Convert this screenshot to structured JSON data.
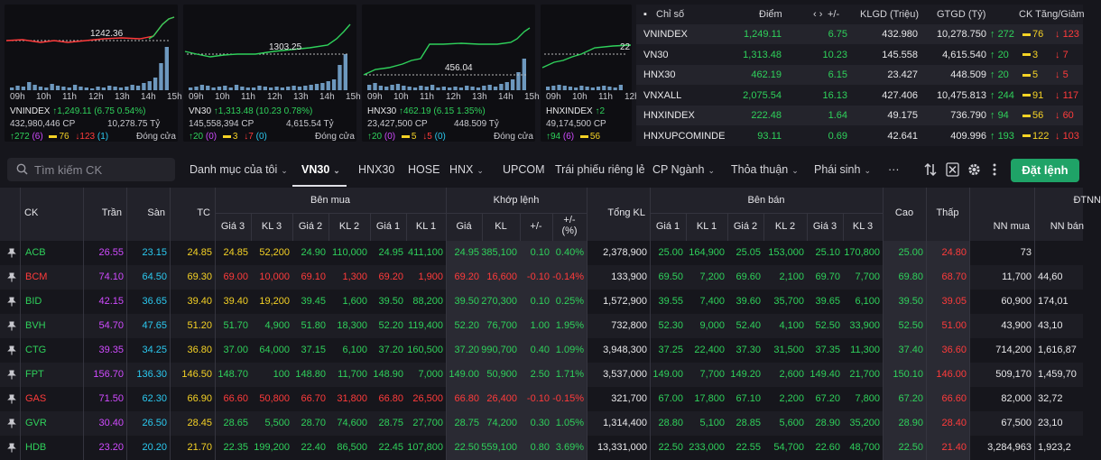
{
  "colors": {
    "up": "#2fd15b",
    "down": "#ff3b3b",
    "ref": "#f5d225",
    "floor": "#2bc9f0",
    "ceil": "#d04bff",
    "accent": "#1fa367"
  },
  "cards": [
    {
      "ref_label": "1242.36",
      "times": [
        "09h",
        "10h",
        "11h",
        "12h",
        "13h",
        "14h",
        "15h"
      ],
      "name": "VNINDEX",
      "arrow": "↑",
      "value": "1,249.11 (6.75 0.54%)",
      "volume": "432,980,446 CP",
      "turnover": "10,278.75 Tỷ",
      "up": "272",
      "up_ceil": "(6)",
      "ref": "76",
      "down": "123",
      "down_floor": "(1)",
      "status": "Đóng cửa"
    },
    {
      "ref_label": "1303.25",
      "times": [
        "09h",
        "10h",
        "11h",
        "12h",
        "13h",
        "14h",
        "15h"
      ],
      "name": "VN30",
      "arrow": "↑",
      "value": "1,313.48 (10.23 0.78%)",
      "volume": "145,558,394 CP",
      "turnover": "4,615.54 Tỷ",
      "up": "20",
      "up_ceil": "(0)",
      "ref": "3",
      "down": "7",
      "down_floor": "(0)",
      "status": "Đóng cửa"
    },
    {
      "ref_label": "456.04",
      "times": [
        "09h",
        "10h",
        "11h",
        "12h",
        "13h",
        "14h",
        "15h"
      ],
      "name": "HNX30",
      "arrow": "↑",
      "value": "462.19 (6.15 1.35%)",
      "volume": "23,427,500 CP",
      "turnover": "448.509 Tỷ",
      "up": "20",
      "up_ceil": "(0)",
      "ref": "5",
      "down": "5",
      "down_floor": "(0)",
      "status": "Đóng cửa"
    },
    {
      "ref_label": "22",
      "times": [
        "09h",
        "10h",
        "11h",
        "12h"
      ],
      "name": "HNXINDEX",
      "arrow": "↑",
      "value": "2",
      "volume": "49,174,500 CP",
      "turnover": "",
      "up": "94",
      "up_ceil": "(6)",
      "ref": "56",
      "down": "",
      "down_floor": "",
      "status": ""
    }
  ],
  "index_table": {
    "headers": {
      "name": "Chỉ số",
      "point": "Điểm",
      "change": "+/-",
      "volume": "KLGD (Triệu)",
      "value": "GTGD (Tỷ)",
      "breadth": "CK Tăng/Giảm"
    },
    "rows": [
      {
        "name": "VNINDEX",
        "point": "1,249.11",
        "change": "6.75",
        "volume": "432.980",
        "value": "10,278.750",
        "up": "272",
        "ref": "76",
        "down": "123"
      },
      {
        "name": "VN30",
        "point": "1,313.48",
        "change": "10.23",
        "volume": "145.558",
        "value": "4,615.540",
        "up": "20",
        "ref": "3",
        "down": "7"
      },
      {
        "name": "HNX30",
        "point": "462.19",
        "change": "6.15",
        "volume": "23.427",
        "value": "448.509",
        "up": "20",
        "ref": "5",
        "down": "5"
      },
      {
        "name": "VNXALL",
        "point": "2,075.54",
        "change": "16.13",
        "volume": "427.406",
        "value": "10,475.813",
        "up": "244",
        "ref": "91",
        "down": "117"
      },
      {
        "name": "HNXINDEX",
        "point": "222.48",
        "change": "1.64",
        "volume": "49.175",
        "value": "736.790",
        "up": "94",
        "ref": "56",
        "down": "60"
      },
      {
        "name": "HNXUPCOMINDE",
        "point": "93.11",
        "change": "0.69",
        "volume": "42.641",
        "value": "409.996",
        "up": "193",
        "ref": "122",
        "down": "103"
      }
    ]
  },
  "toolbar": {
    "search_placeholder": "Tìm kiếm CK",
    "tabs": [
      "Danh mục của tôi",
      "VN30",
      "HNX30",
      "HOSE",
      "HNX",
      "UPCOM",
      "Trái phiếu riêng lẻ",
      "CP Ngành",
      "Thỏa thuận",
      "Phái sinh",
      "···"
    ],
    "order_button": "Đặt lệnh"
  },
  "board": {
    "groups": {
      "bid": "Bên mua",
      "match": "Khớp lệnh",
      "ask": "Bên bán",
      "foreign": "ĐTNN"
    },
    "columns": {
      "ck": "CK",
      "ceil": "Trần",
      "floor": "Sàn",
      "ref": "TC",
      "p3": "Giá 3",
      "v3": "KL 3",
      "p2": "Giá 2",
      "v2": "KL 2",
      "p1": "Giá 1",
      "v1": "KL 1",
      "mp": "Giá",
      "mv": "KL",
      "chg": "+/-",
      "pct": "+/-\n(%)",
      "total": "Tổng KL",
      "high": "Cao",
      "low": "Thấp",
      "nn_buy": "NN mua",
      "nn_sell": "NN bán"
    },
    "rows": [
      {
        "ck": "ACB",
        "c": "up",
        "ceil": "26.55",
        "floor": "23.15",
        "ref": "24.85",
        "b3": "24.85",
        "bv3": "52,200",
        "b3c": "ref",
        "b2": "24.90",
        "bv2": "110,000",
        "b2c": "up",
        "b1": "24.95",
        "bv1": "411,100",
        "b1c": "up",
        "mp": "24.95",
        "mv": "385,100",
        "chg": "0.10",
        "pct": "0.40%",
        "total": "2,378,900",
        "a1": "25.00",
        "av1": "164,900",
        "a1c": "up",
        "a2": "25.05",
        "av2": "153,000",
        "a2c": "up",
        "a3": "25.10",
        "av3": "170,800",
        "a3c": "up",
        "high": "25.00",
        "highc": "up",
        "low": "24.80",
        "lowc": "down",
        "nnb": "73",
        "nns": ""
      },
      {
        "ck": "BCM",
        "c": "down",
        "ceil": "74.10",
        "floor": "64.50",
        "ref": "69.30",
        "b3": "69.00",
        "bv3": "10,000",
        "b3c": "down",
        "b2": "69.10",
        "bv2": "1,300",
        "b2c": "down",
        "b1": "69.20",
        "bv1": "1,900",
        "b1c": "down",
        "mp": "69.20",
        "mv": "16,600",
        "chg": "-0.10",
        "pct": "-0.14%",
        "total": "133,900",
        "a1": "69.50",
        "av1": "7,200",
        "a1c": "up",
        "a2": "69.60",
        "av2": "2,100",
        "a2c": "up",
        "a3": "69.70",
        "av3": "7,700",
        "a3c": "up",
        "high": "69.80",
        "highc": "up",
        "low": "68.70",
        "lowc": "down",
        "nnb": "11,700",
        "nns": "44,60"
      },
      {
        "ck": "BID",
        "c": "up",
        "ceil": "42.15",
        "floor": "36.65",
        "ref": "39.40",
        "b3": "39.40",
        "bv3": "19,200",
        "b3c": "ref",
        "b2": "39.45",
        "bv2": "1,600",
        "b2c": "up",
        "b1": "39.50",
        "bv1": "88,200",
        "b1c": "up",
        "mp": "39.50",
        "mv": "270,300",
        "chg": "0.10",
        "pct": "0.25%",
        "total": "1,572,900",
        "a1": "39.55",
        "av1": "7,400",
        "a1c": "up",
        "a2": "39.60",
        "av2": "35,700",
        "a2c": "up",
        "a3": "39.65",
        "av3": "6,100",
        "a3c": "up",
        "high": "39.50",
        "highc": "up",
        "low": "39.05",
        "lowc": "down",
        "nnb": "60,900",
        "nns": "174,01"
      },
      {
        "ck": "BVH",
        "c": "up",
        "ceil": "54.70",
        "floor": "47.65",
        "ref": "51.20",
        "b3": "51.70",
        "bv3": "4,900",
        "b3c": "up",
        "b2": "51.80",
        "bv2": "18,300",
        "b2c": "up",
        "b1": "52.20",
        "bv1": "119,400",
        "b1c": "up",
        "mp": "52.20",
        "mv": "76,700",
        "chg": "1.00",
        "pct": "1.95%",
        "total": "732,800",
        "a1": "52.30",
        "av1": "9,000",
        "a1c": "up",
        "a2": "52.40",
        "av2": "4,100",
        "a2c": "up",
        "a3": "52.50",
        "av3": "33,900",
        "a3c": "up",
        "high": "52.50",
        "highc": "up",
        "low": "51.00",
        "lowc": "down",
        "nnb": "43,900",
        "nns": "43,10"
      },
      {
        "ck": "CTG",
        "c": "up",
        "ceil": "39.35",
        "floor": "34.25",
        "ref": "36.80",
        "b3": "37.00",
        "bv3": "64,000",
        "b3c": "up",
        "b2": "37.15",
        "bv2": "6,100",
        "b2c": "up",
        "b1": "37.20",
        "bv1": "160,500",
        "b1c": "up",
        "mp": "37.20",
        "mv": "990,700",
        "chg": "0.40",
        "pct": "1.09%",
        "total": "3,948,300",
        "a1": "37.25",
        "av1": "22,400",
        "a1c": "up",
        "a2": "37.30",
        "av2": "31,500",
        "a2c": "up",
        "a3": "37.35",
        "av3": "11,300",
        "a3c": "up",
        "high": "37.40",
        "highc": "up",
        "low": "36.60",
        "lowc": "down",
        "nnb": "714,200",
        "nns": "1,616,87"
      },
      {
        "ck": "FPT",
        "c": "up",
        "ceil": "156.70",
        "floor": "136.30",
        "ref": "146.50",
        "b3": "148.70",
        "bv3": "100",
        "b3c": "up",
        "b2": "148.80",
        "bv2": "11,700",
        "b2c": "up",
        "b1": "148.90",
        "bv1": "7,000",
        "b1c": "up",
        "mp": "149.00",
        "mv": "50,900",
        "chg": "2.50",
        "pct": "1.71%",
        "total": "3,537,000",
        "a1": "149.00",
        "av1": "7,700",
        "a1c": "up",
        "a2": "149.20",
        "av2": "2,600",
        "a2c": "up",
        "a3": "149.40",
        "av3": "21,700",
        "a3c": "up",
        "high": "150.10",
        "highc": "up",
        "low": "146.00",
        "lowc": "down",
        "nnb": "509,170",
        "nns": "1,459,70"
      },
      {
        "ck": "GAS",
        "c": "down",
        "ceil": "71.50",
        "floor": "62.30",
        "ref": "66.90",
        "b3": "66.60",
        "bv3": "50,800",
        "b3c": "down",
        "b2": "66.70",
        "bv2": "31,800",
        "b2c": "down",
        "b1": "66.80",
        "bv1": "26,500",
        "b1c": "down",
        "mp": "66.80",
        "mv": "26,400",
        "chg": "-0.10",
        "pct": "-0.15%",
        "total": "321,700",
        "a1": "67.00",
        "av1": "17,800",
        "a1c": "up",
        "a2": "67.10",
        "av2": "2,200",
        "a2c": "up",
        "a3": "67.20",
        "av3": "7,800",
        "a3c": "up",
        "high": "67.20",
        "highc": "up",
        "low": "66.60",
        "lowc": "down",
        "nnb": "82,000",
        "nns": "32,72"
      },
      {
        "ck": "GVR",
        "c": "up",
        "ceil": "30.40",
        "floor": "26.50",
        "ref": "28.45",
        "b3": "28.65",
        "bv3": "5,500",
        "b3c": "up",
        "b2": "28.70",
        "bv2": "74,600",
        "b2c": "up",
        "b1": "28.75",
        "bv1": "27,700",
        "b1c": "up",
        "mp": "28.75",
        "mv": "74,200",
        "chg": "0.30",
        "pct": "1.05%",
        "total": "1,314,400",
        "a1": "28.80",
        "av1": "5,100",
        "a1c": "up",
        "a2": "28.85",
        "av2": "5,600",
        "a2c": "up",
        "a3": "28.90",
        "av3": "35,200",
        "a3c": "up",
        "high": "28.90",
        "highc": "up",
        "low": "28.40",
        "lowc": "down",
        "nnb": "67,500",
        "nns": "23,10"
      },
      {
        "ck": "HDB",
        "c": "up",
        "ceil": "23.20",
        "floor": "20.20",
        "ref": "21.70",
        "b3": "22.35",
        "bv3": "199,200",
        "b3c": "up",
        "b2": "22.40",
        "bv2": "86,500",
        "b2c": "up",
        "b1": "22.45",
        "bv1": "107,800",
        "b1c": "up",
        "mp": "22.50",
        "mv": "559,100",
        "chg": "0.80",
        "pct": "3.69%",
        "total": "13,331,000",
        "a1": "22.50",
        "av1": "233,000",
        "a1c": "up",
        "a2": "22.55",
        "av2": "54,700",
        "a2c": "up",
        "a3": "22.60",
        "av3": "48,700",
        "a3c": "up",
        "high": "22.50",
        "highc": "up",
        "low": "21.40",
        "lowc": "down",
        "nnb": "3,284,963",
        "nns": "1,923,2"
      }
    ]
  }
}
